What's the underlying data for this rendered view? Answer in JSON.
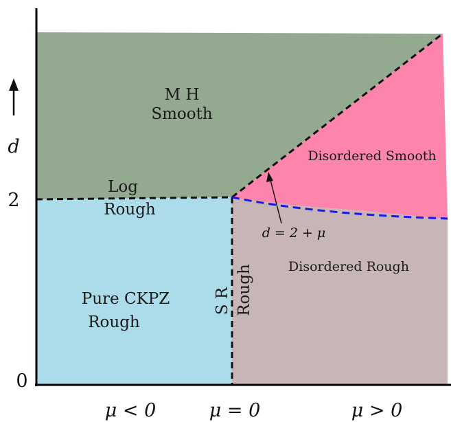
{
  "diagram": {
    "y_axis": {
      "symbol": "d",
      "arrow": "↑",
      "tick_labels": [
        "0",
        "2"
      ]
    },
    "x_axis": {
      "tick_labels": [
        "μ < 0",
        "μ = 0",
        "μ > 0"
      ]
    },
    "regions": {
      "mh_smooth": {
        "line1": "M H",
        "line2": "Smooth",
        "color": "#93aa90"
      },
      "log_rough": {
        "line1": "Log",
        "line2": "Rough"
      },
      "pure_ckpz": {
        "line1": "Pure CKPZ",
        "line2": "Rough",
        "color": "#acdbe9"
      },
      "sr_rough": {
        "line1": "S R",
        "line2": "Rough"
      },
      "disordered_smooth": {
        "label": "Disordered Smooth",
        "color": "#fd84ab"
      },
      "disordered_rough": {
        "label": "Disordered Rough",
        "color": "#c7b6b5"
      }
    },
    "boundary_annotation": "d = 2 + μ",
    "colors": {
      "boundary_black": "#111111",
      "boundary_blue": "#1a1ae6"
    }
  }
}
